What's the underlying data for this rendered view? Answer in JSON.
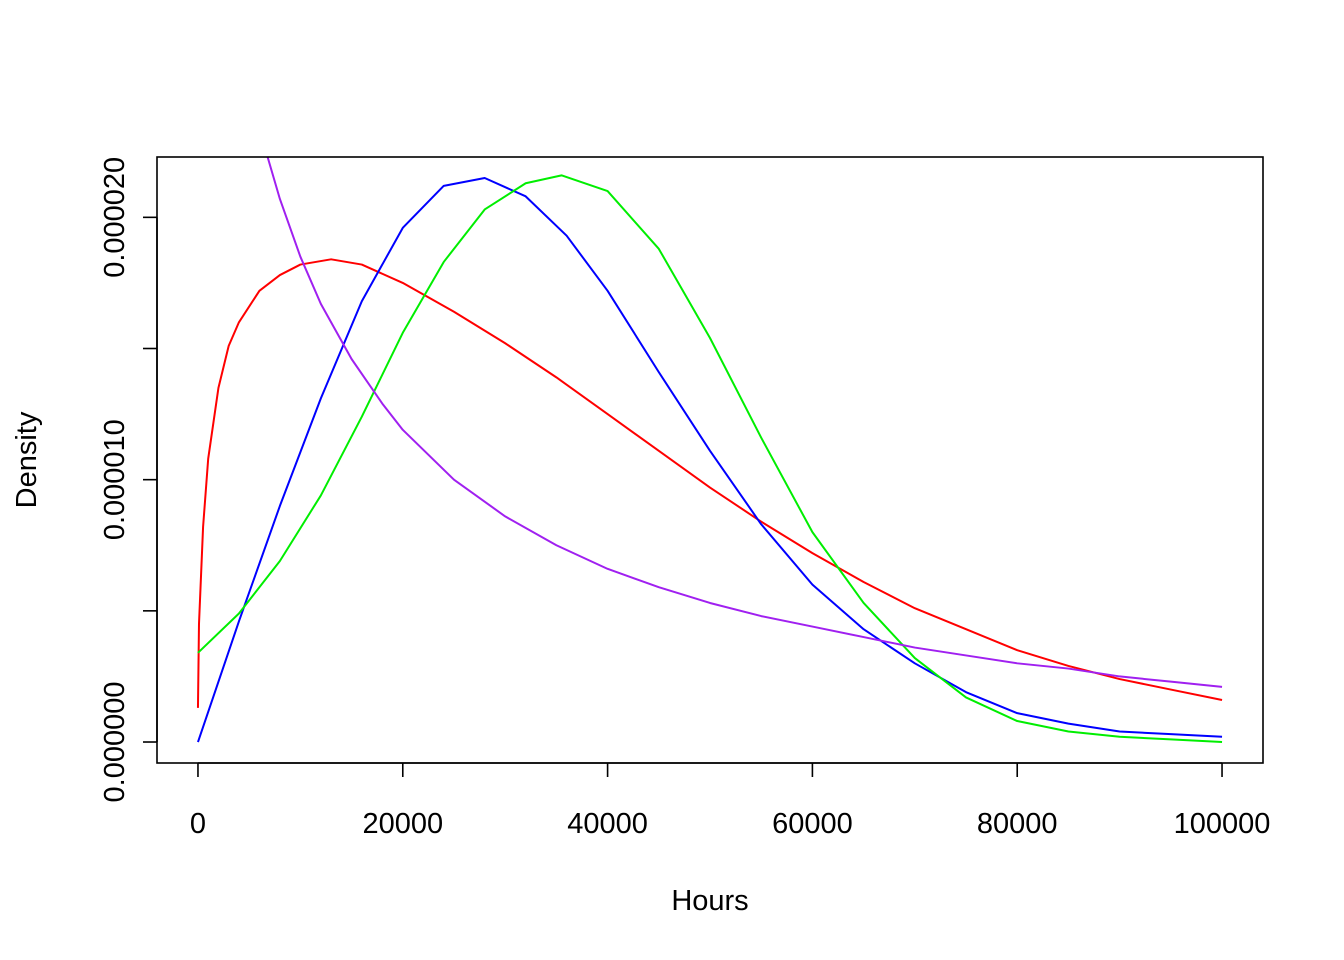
{
  "chart_data": {
    "type": "line",
    "title": "",
    "xlabel": "Hours",
    "ylabel": "Density",
    "xlim": [
      -4000,
      104000
    ],
    "ylim": [
      -8e-07,
      2.23e-05
    ],
    "x_ticks": [
      0,
      20000,
      40000,
      60000,
      80000,
      100000
    ],
    "x_tick_labels": [
      "0",
      "20000",
      "40000",
      "60000",
      "80000",
      "100000"
    ],
    "y_ticks": [
      0,
      5e-06,
      1e-05,
      1.5e-05,
      2e-05
    ],
    "y_tick_labels": [
      "0.000000",
      "",
      "0.000010",
      "",
      "0.000020"
    ],
    "grid": false,
    "legend": "none",
    "series": [
      {
        "color": "#ff0000",
        "x": [
          0,
          100,
          500,
          1000,
          2000,
          3000,
          4000,
          6000,
          8000,
          10000,
          13000,
          16000,
          20000,
          25000,
          30000,
          35000,
          40000,
          45000,
          50000,
          55000,
          60000,
          65000,
          70000,
          75000,
          80000,
          85000,
          90000,
          95000,
          100000
        ],
        "y": [
          1.3e-06,
          4.5e-06,
          8.2e-06,
          1.08e-05,
          1.35e-05,
          1.51e-05,
          1.6e-05,
          1.72e-05,
          1.78e-05,
          1.82e-05,
          1.84e-05,
          1.82e-05,
          1.75e-05,
          1.64e-05,
          1.52e-05,
          1.39e-05,
          1.25e-05,
          1.11e-05,
          9.7e-06,
          8.4e-06,
          7.2e-06,
          6.1e-06,
          5.1e-06,
          4.3e-06,
          3.5e-06,
          2.9e-06,
          2.4e-06,
          2e-06,
          1.6e-06
        ]
      },
      {
        "color": "#0000ff",
        "x": [
          0,
          4000,
          8000,
          12000,
          16000,
          20000,
          24000,
          28000,
          32000,
          36000,
          40000,
          45000,
          50000,
          55000,
          60000,
          65000,
          70000,
          75000,
          80000,
          85000,
          90000,
          95000,
          100000
        ],
        "y": [
          0.0,
          4.6e-06,
          9e-06,
          1.31e-05,
          1.68e-05,
          1.96e-05,
          2.12e-05,
          2.15e-05,
          2.08e-05,
          1.93e-05,
          1.72e-05,
          1.41e-05,
          1.11e-05,
          8.3e-06,
          6e-06,
          4.3e-06,
          3e-06,
          1.9e-06,
          1.1e-06,
          7e-07,
          4e-07,
          3e-07,
          2e-07
        ]
      },
      {
        "color": "#00ee00",
        "x": [
          0,
          4000,
          8000,
          12000,
          16000,
          20000,
          24000,
          28000,
          32000,
          35500,
          40000,
          45000,
          50000,
          55000,
          60000,
          65000,
          70000,
          75000,
          80000,
          85000,
          90000,
          95000,
          100000
        ],
        "y": [
          3.4e-06,
          4.9e-06,
          6.9e-06,
          9.4e-06,
          1.24e-05,
          1.56e-05,
          1.83e-05,
          2.03e-05,
          2.13e-05,
          2.16e-05,
          2.1e-05,
          1.88e-05,
          1.54e-05,
          1.16e-05,
          8e-06,
          5.3e-06,
          3.2e-06,
          1.7e-06,
          8e-07,
          4e-07,
          2e-07,
          1e-07,
          0.0
        ]
      },
      {
        "color": "#a020f0",
        "x": [
          6800,
          8000,
          10000,
          12000,
          15000,
          18000,
          20000,
          25000,
          30000,
          35000,
          40000,
          45000,
          50000,
          55000,
          60000,
          65000,
          70000,
          75000,
          80000,
          85000,
          90000,
          95000,
          100000
        ],
        "y": [
          2.23e-05,
          2.07e-05,
          1.85e-05,
          1.67e-05,
          1.46e-05,
          1.29e-05,
          1.19e-05,
          1e-05,
          8.6e-06,
          7.5e-06,
          6.6e-06,
          5.9e-06,
          5.3e-06,
          4.8e-06,
          4.4e-06,
          4e-06,
          3.6e-06,
          3.3e-06,
          3e-06,
          2.8e-06,
          2.5e-06,
          2.3e-06,
          2.1e-06
        ]
      }
    ]
  }
}
